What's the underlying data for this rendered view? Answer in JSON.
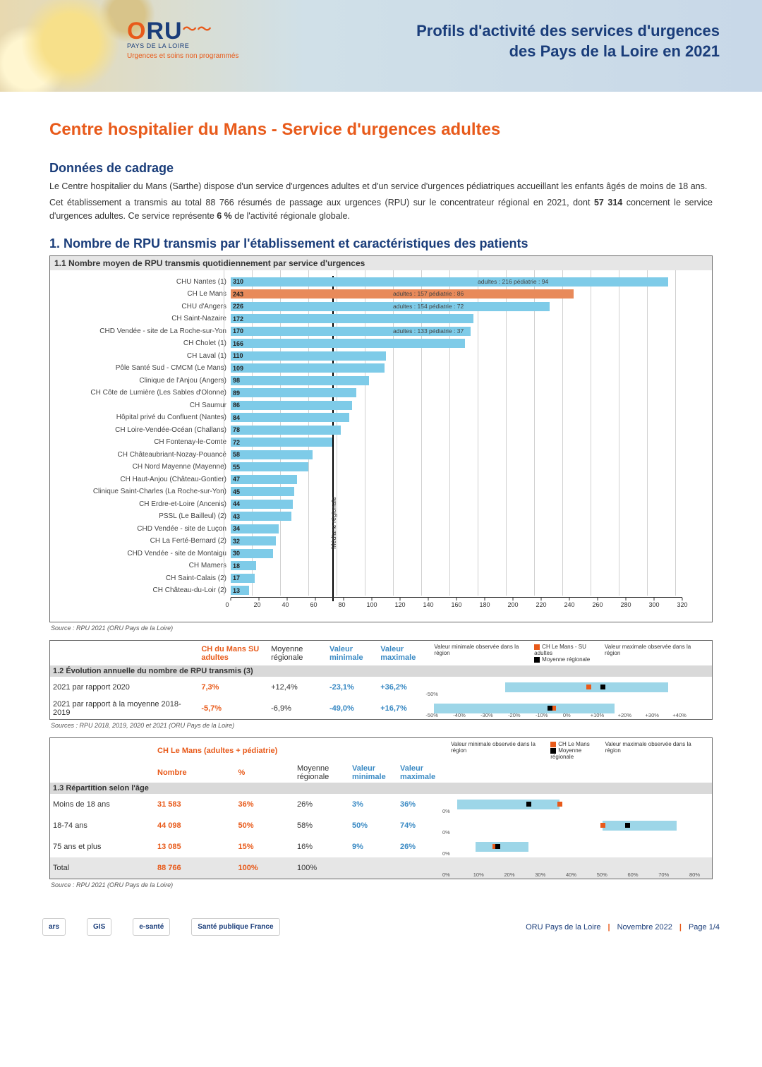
{
  "header": {
    "logo_main": "ORU",
    "logo_region": "PAYS DE LA LOIRE",
    "logo_tag": "Urgences et soins non programmés",
    "title_l1": "Profils d'activité des services d'urgences",
    "title_l2": "des Pays de la Loire en 2021"
  },
  "main_title": "Centre hospitalier du Mans - Service d'urgences adultes",
  "cadrage": {
    "heading": "Données de cadrage",
    "p1": "Le Centre hospitalier du Mans (Sarthe) dispose d'un service d'urgences adultes et d'un service d'urgences pédiatriques accueillant les enfants âgés de moins de 18 ans.",
    "p2a": "Cet établissement a transmis au total 88 766 résumés de passage aux urgences (RPU) sur le concentrateur régional en 2021, dont ",
    "p2b": "57 314",
    "p2c": " concernent le service d'urgences adultes. Ce service représente ",
    "p2d": "6 %",
    "p2e": " de l'activité régionale globale."
  },
  "section1_title": "1. Nombre de RPU transmis par l'établissement et caractéristiques des patients",
  "chart11": {
    "title": "1.1 Nombre moyen de RPU transmis quotidiennement par service d'urgences",
    "xmax": 320,
    "xtick_step": 20,
    "bar_color": "#7ecbe8",
    "highlight_color": "#e88a5a",
    "median": 77,
    "median_label": "Médiane régionale",
    "rows": [
      {
        "label": "CHU Nantes (1)",
        "v": 310,
        "ann": "adultes : 216   pédiatrie : 94",
        "ann_at": 175
      },
      {
        "label": "CH Le Mans",
        "v": 243,
        "hl": true,
        "ann": "adultes : 157   pédiatrie : 86",
        "ann_at": 115
      },
      {
        "label": "CHU d'Angers",
        "v": 226,
        "ann": "adultes : 154   pédiatrie : 72",
        "ann_at": 115
      },
      {
        "label": "CH Saint-Nazaire",
        "v": 172
      },
      {
        "label": "CHD Vendée - site de La Roche-sur-Yon",
        "v": 170,
        "ann": "adultes : 133   pédiatrie : 37",
        "ann_at": 115
      },
      {
        "label": "CH Cholet (1)",
        "v": 166
      },
      {
        "label": "CH Laval (1)",
        "v": 110
      },
      {
        "label": "Pôle Santé Sud - CMCM (Le Mans)",
        "v": 109
      },
      {
        "label": "Clinique de l'Anjou (Angers)",
        "v": 98
      },
      {
        "label": "CH Côte de Lumière (Les Sables d'Olonne)",
        "v": 89
      },
      {
        "label": "CH Saumur",
        "v": 86
      },
      {
        "label": "Hôpital privé du Confluent (Nantes)",
        "v": 84
      },
      {
        "label": "CH Loire-Vendée-Océan (Challans)",
        "v": 78
      },
      {
        "label": "CH Fontenay-le-Comte",
        "v": 72
      },
      {
        "label": "CH Châteaubriant-Nozay-Pouancé",
        "v": 58
      },
      {
        "label": "CH Nord Mayenne (Mayenne)",
        "v": 55
      },
      {
        "label": "CH Haut-Anjou (Château-Gontier)",
        "v": 47
      },
      {
        "label": "Clinique Saint-Charles (La Roche-sur-Yon)",
        "v": 45
      },
      {
        "label": "CH Erdre-et-Loire (Ancenis)",
        "v": 44
      },
      {
        "label": "PSSL (Le Bailleul) (2)",
        "v": 43
      },
      {
        "label": "CHD Vendée - site de Luçon",
        "v": 34
      },
      {
        "label": "CH La Ferté-Bernard (2)",
        "v": 32
      },
      {
        "label": "CHD Vendée - site de Montaigu",
        "v": 30
      },
      {
        "label": "CH Mamers",
        "v": 18
      },
      {
        "label": "CH Saint-Calais (2)",
        "v": 17
      },
      {
        "label": "CH Château-du-Loir (2)",
        "v": 13
      }
    ],
    "source": "Source : RPU 2021 (ORU Pays de la Loire)"
  },
  "table12": {
    "col_hdrs": {
      "c1": "CH du Mans SU adultes",
      "c2": "Moyenne régionale",
      "c3": "Valeur minimale",
      "c4": "Valeur maximale"
    },
    "legend": {
      "min": "Valeur minimale observée dans la région",
      "max": "Valeur maximale observée dans la région",
      "s1": "CH Le Mans - SU adultes",
      "s2": "Moyenne régionale"
    },
    "section": "1.2 Évolution annuelle du nombre de RPU transmis (3)",
    "axis": {
      "min": -50,
      "max": 40,
      "step": 10,
      "fmt": "pct_signed"
    },
    "rows": [
      {
        "label": "2021 par rapport 2020",
        "own": "7,3%",
        "avg": "+12,4%",
        "vmin": "-23,1%",
        "vmax": "+36,2%",
        "range": [
          -23.1,
          36.2
        ],
        "pt_own": 7.3,
        "pt_avg": 12.4
      },
      {
        "label": "2021 par rapport à la moyenne 2018-2019",
        "own": "-5,7%",
        "avg": "-6,9%",
        "vmin": "-49,0%",
        "vmax": "+16,7%",
        "range": [
          -49.0,
          16.7
        ],
        "pt_own": -5.7,
        "pt_avg": -6.9
      }
    ],
    "source": "Sources : RPU 2018, 2019, 2020 et 2021 (ORU Pays de la Loire)"
  },
  "table13": {
    "col_hdrs": {
      "c1a": "CH Le Mans (adultes + pédiatrie)",
      "c1n": "Nombre",
      "c1p": "%",
      "c2": "Moyenne régionale",
      "c3": "Valeur minimale",
      "c4": "Valeur maximale"
    },
    "legend": {
      "min": "Valeur minimale observée dans la région",
      "max": "Valeur maximale observée dans la région",
      "s1": "CH Le Mans",
      "s2": "Moyenne régionale"
    },
    "section": "1.3 Répartition selon l'âge",
    "axis": {
      "min": 0,
      "max": 80,
      "step": 10,
      "fmt": "pct"
    },
    "rows": [
      {
        "label": "Moins de 18 ans",
        "n": "31 583",
        "p": "36%",
        "avg": "26%",
        "vmin": "3%",
        "vmax": "36%",
        "range": [
          3,
          36
        ],
        "pt_own": 36,
        "pt_avg": 26
      },
      {
        "label": "18-74 ans",
        "n": "44 098",
        "p": "50%",
        "avg": "58%",
        "vmin": "50%",
        "vmax": "74%",
        "range": [
          50,
          74
        ],
        "pt_own": 50,
        "pt_avg": 58
      },
      {
        "label": "75 ans et plus",
        "n": "13 085",
        "p": "15%",
        "avg": "16%",
        "vmin": "9%",
        "vmax": "26%",
        "range": [
          9,
          26
        ],
        "pt_own": 15,
        "pt_avg": 16
      },
      {
        "label": "Total",
        "n": "88 766",
        "p": "100%",
        "avg": "100%",
        "vmin": "",
        "vmax": "",
        "range": null
      }
    ],
    "source": "Source : RPU 2021 (ORU Pays de la Loire)"
  },
  "footer": {
    "logos": [
      "ars",
      "GIS",
      "e-santé",
      "Santé publique France"
    ],
    "org": "ORU Pays de la Loire",
    "date": "Novembre 2022",
    "page": "Page 1/4"
  }
}
